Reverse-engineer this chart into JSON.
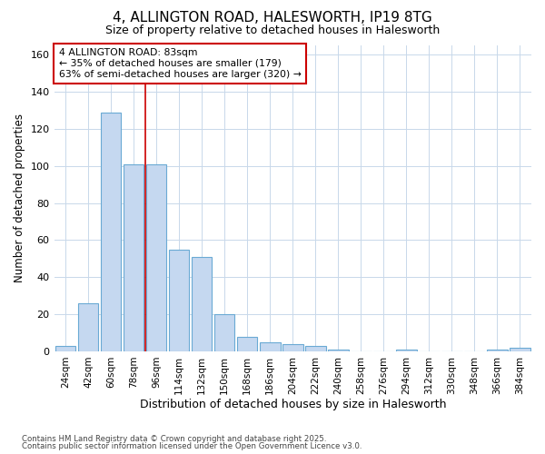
{
  "title_line1": "4, ALLINGTON ROAD, HALESWORTH, IP19 8TG",
  "title_line2": "Size of property relative to detached houses in Halesworth",
  "xlabel": "Distribution of detached houses by size in Halesworth",
  "ylabel": "Number of detached properties",
  "categories": [
    "24sqm",
    "42sqm",
    "60sqm",
    "78sqm",
    "96sqm",
    "114sqm",
    "132sqm",
    "150sqm",
    "168sqm",
    "186sqm",
    "204sqm",
    "222sqm",
    "240sqm",
    "258sqm",
    "276sqm",
    "294sqm",
    "312sqm",
    "330sqm",
    "348sqm",
    "366sqm",
    "384sqm"
  ],
  "values": [
    3,
    26,
    129,
    101,
    101,
    55,
    51,
    20,
    8,
    5,
    4,
    3,
    1,
    0,
    0,
    1,
    0,
    0,
    0,
    1,
    2
  ],
  "bar_color": "#c5d8f0",
  "bar_edge_color": "#6aaad4",
  "grid_color": "#c8d8ea",
  "background_color": "#ffffff",
  "annotation_label": "4 ALLINGTON ROAD: 83sqm",
  "annotation_line1": "← 35% of detached houses are smaller (179)",
  "annotation_line2": "63% of semi-detached houses are larger (320) →",
  "annotation_box_color": "#ffffff",
  "annotation_box_edge": "#cc0000",
  "vline_color": "#cc0000",
  "footer_line1": "Contains HM Land Registry data © Crown copyright and database right 2025.",
  "footer_line2": "Contains public sector information licensed under the Open Government Licence v3.0.",
  "ylim": [
    0,
    165
  ],
  "yticks": [
    0,
    20,
    40,
    60,
    80,
    100,
    120,
    140,
    160
  ],
  "vline_idx": 3.5
}
